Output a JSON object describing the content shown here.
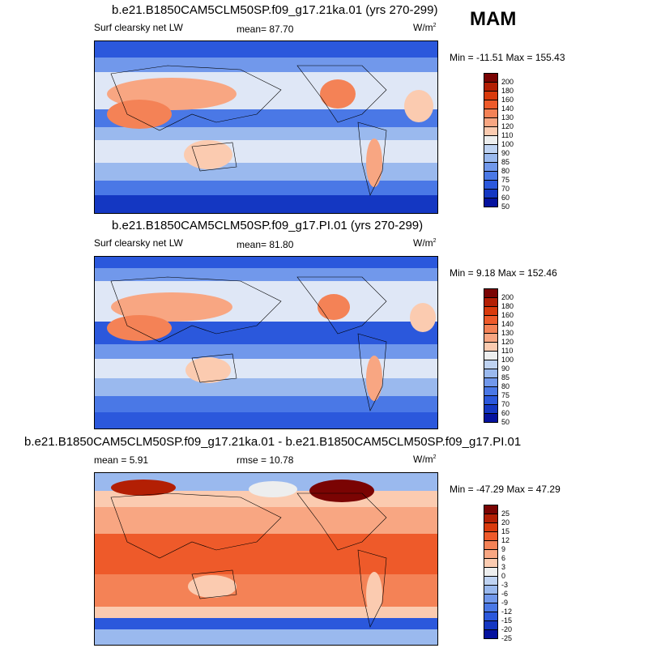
{
  "season": "MAM",
  "panels": [
    {
      "title": "b.e21.B1850CAM5CLM50SP.f09_g17.21ka.01 (yrs 270-299)",
      "left_label": "Surf clearsky net LW",
      "stat_label": "mean=  87.70",
      "units": "W/m",
      "units_exp": "2",
      "minmax": "Min = -11.51 Max = 155.43",
      "levels": [
        "200",
        "180",
        "160",
        "140",
        "130",
        "120",
        "110",
        "100",
        "90",
        "85",
        "80",
        "75",
        "70",
        "60",
        "50"
      ],
      "colors": [
        "#7a0403",
        "#b31f04",
        "#d93a0c",
        "#ee5a2a",
        "#f48256",
        "#f8a682",
        "#fbcbb0",
        "#edeeee",
        "#bfd3f2",
        "#9ab9ee",
        "#7198eb",
        "#4a78e6",
        "#2b58dc",
        "#1437c2",
        "#05129e"
      ]
    },
    {
      "title": "b.e21.B1850CAM5CLM50SP.f09_g17.PI.01 (yrs 270-299)",
      "left_label": "Surf clearsky net LW",
      "stat_label": "mean=  81.80",
      "units": "W/m",
      "units_exp": "2",
      "minmax": "Min =   9.18 Max = 152.46",
      "levels": [
        "200",
        "180",
        "160",
        "140",
        "130",
        "120",
        "110",
        "100",
        "90",
        "85",
        "80",
        "75",
        "70",
        "60",
        "50"
      ],
      "colors": [
        "#7a0403",
        "#b31f04",
        "#d93a0c",
        "#ee5a2a",
        "#f48256",
        "#f8a682",
        "#fbcbb0",
        "#edeeee",
        "#bfd3f2",
        "#9ab9ee",
        "#7198eb",
        "#4a78e6",
        "#2b58dc",
        "#1437c2",
        "#05129e"
      ]
    },
    {
      "title": "b.e21.B1850CAM5CLM50SP.f09_g17.21ka.01 - b.e21.B1850CAM5CLM50SP.f09_g17.PI.01",
      "left_label": "mean =   5.91",
      "stat_label": "rmse =  10.78",
      "units": "W/m",
      "units_exp": "2",
      "minmax": "Min = -47.29 Max =  47.29",
      "levels": [
        "25",
        "20",
        "15",
        "12",
        "9",
        "6",
        "3",
        "0",
        "-3",
        "-6",
        "-9",
        "-12",
        "-15",
        "-20",
        "-25"
      ],
      "colors": [
        "#7a0403",
        "#b31f04",
        "#d93a0c",
        "#ee5a2a",
        "#f48256",
        "#f8a682",
        "#fbcbb0",
        "#edeeee",
        "#bfd3f2",
        "#9ab9ee",
        "#7198eb",
        "#4a78e6",
        "#2b58dc",
        "#1437c2",
        "#05129e"
      ]
    }
  ]
}
